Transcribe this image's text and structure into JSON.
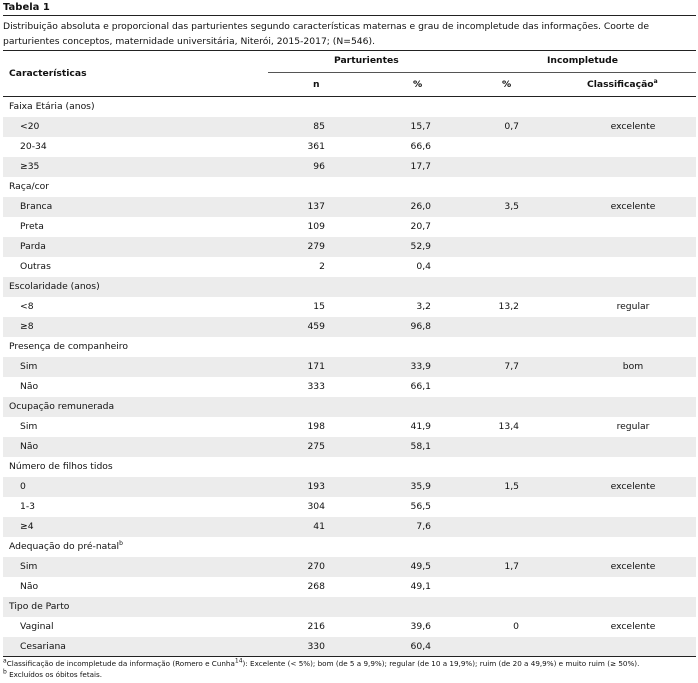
{
  "table_label": "Tabela 1",
  "caption": "Distribuição absoluta e proporcional das parturientes segundo características maternas e grau de incompletude das informações. Coorte de parturientes conceptos, maternidade universitária, Niterói, 2015-2017; (N=546).",
  "headers": {
    "characteristics": "Características",
    "parturientes": "Parturientes",
    "incompletude": "Incompletude",
    "n": "n",
    "pct": "%",
    "inc_pct": "%",
    "classification": "Classificação",
    "classification_mark": "a"
  },
  "rows": [
    {
      "label": "Faixa Etária (anos)",
      "group": true,
      "mark": ""
    },
    {
      "label": "<20",
      "n": "85",
      "pct": "15,7",
      "inc": "0,7",
      "cls": "excelente"
    },
    {
      "label": "20-34",
      "n": "361",
      "pct": "66,6",
      "inc": "",
      "cls": ""
    },
    {
      "label": "≥35",
      "n": "96",
      "pct": "17,7",
      "inc": "",
      "cls": ""
    },
    {
      "label": "Raça/cor",
      "group": true,
      "mark": ""
    },
    {
      "label": "Branca",
      "n": "137",
      "pct": "26,0",
      "inc": "3,5",
      "cls": "excelente"
    },
    {
      "label": "Preta",
      "n": "109",
      "pct": "20,7",
      "inc": "",
      "cls": ""
    },
    {
      "label": "Parda",
      "n": "279",
      "pct": "52,9",
      "inc": "",
      "cls": ""
    },
    {
      "label": "Outras",
      "n": "2",
      "pct": "0,4",
      "inc": "",
      "cls": ""
    },
    {
      "label": "Escolaridade (anos)",
      "group": true,
      "mark": ""
    },
    {
      "label": "<8",
      "n": "15",
      "pct": "3,2",
      "inc": "13,2",
      "cls": "regular"
    },
    {
      "label": "≥8",
      "n": "459",
      "pct": "96,8",
      "inc": "",
      "cls": ""
    },
    {
      "label": "Presença de companheiro",
      "group": true,
      "mark": ""
    },
    {
      "label": "Sim",
      "n": "171",
      "pct": "33,9",
      "inc": "7,7",
      "cls": "bom"
    },
    {
      "label": "Não",
      "n": "333",
      "pct": "66,1",
      "inc": "",
      "cls": ""
    },
    {
      "label": "Ocupação remunerada",
      "group": true,
      "mark": ""
    },
    {
      "label": "Sim",
      "n": "198",
      "pct": "41,9",
      "inc": "13,4",
      "cls": "regular"
    },
    {
      "label": "Não",
      "n": "275",
      "pct": "58,1",
      "inc": "",
      "cls": ""
    },
    {
      "label": "Número de filhos tidos",
      "group": true,
      "mark": ""
    },
    {
      "label": "0",
      "n": "193",
      "pct": "35,9",
      "inc": "1,5",
      "cls": "excelente"
    },
    {
      "label": "1-3",
      "n": "304",
      "pct": "56,5",
      "inc": "",
      "cls": ""
    },
    {
      "label": "≥4",
      "n": "41",
      "pct": "7,6",
      "inc": "",
      "cls": ""
    },
    {
      "label": "Adequação do pré-natal",
      "group": true,
      "mark": "b"
    },
    {
      "label": "Sim",
      "n": "270",
      "pct": "49,5",
      "inc": "1,7",
      "cls": "excelente"
    },
    {
      "label": "Não",
      "n": "268",
      "pct": "49,1",
      "inc": "",
      "cls": ""
    },
    {
      "label": "Tipo de Parto",
      "group": true,
      "mark": ""
    },
    {
      "label": "Vaginal",
      "n": "216",
      "pct": "39,6",
      "inc": "0",
      "cls": "excelente"
    },
    {
      "label": "Cesariana",
      "n": "330",
      "pct": "60,4",
      "inc": "",
      "cls": ""
    }
  ],
  "footnotes": [
    {
      "mark": "a",
      "text": "Classificação de incompletude da informação (Romero e Cunha",
      "ref": "14",
      "text2": "): Excelente (< 5%); bom (de 5 a 9,9%); regular (de 10 a 19,9%); ruim (de 20 a 49,9%) e muito ruim (≥ 50%)."
    },
    {
      "mark": "b",
      "text": " Excluídos os óbitos fetais.",
      "ref": "",
      "text2": ""
    }
  ]
}
